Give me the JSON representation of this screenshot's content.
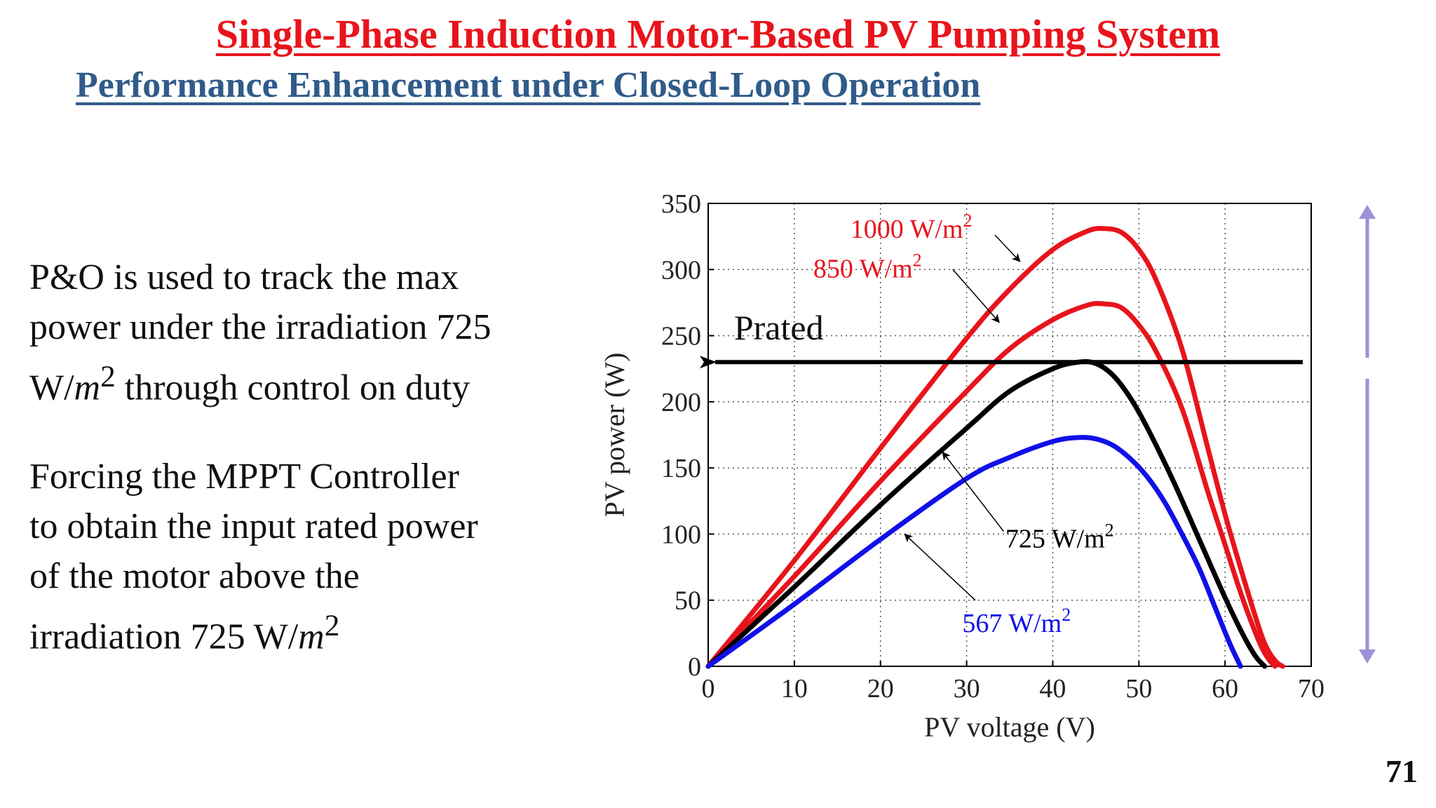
{
  "slide": {
    "title": "Single-Phase Induction Motor-Based PV Pumping System",
    "subtitle": "Performance Enhancement under Closed-Loop Operation",
    "paragraph1": {
      "line1": "P&O is used to track the max",
      "line2": "power under the irradiation 725",
      "line3_pre": "W/",
      "math": "m",
      "sup": "2",
      "line3_post": " through control on duty"
    },
    "paragraph2": {
      "line1": "Forcing the MPPT Controller",
      "line2": "to obtain the input rated power",
      "line3": "of the motor above the",
      "line4_pre": "irradiation 725 W/",
      "math": "m",
      "sup": "2"
    },
    "page_number": "71"
  },
  "colors": {
    "title": "#e8141c",
    "subtitle": "#305b8a",
    "ruler": "#9b93d6"
  },
  "chart_data": {
    "type": "line",
    "xlabel": "PV voltage (V)",
    "ylabel": "PV power (W)",
    "xlim": [
      0,
      70
    ],
    "ylim": [
      0,
      350
    ],
    "xticks": [
      0,
      10,
      20,
      30,
      40,
      50,
      60,
      70
    ],
    "yticks": [
      0,
      50,
      100,
      150,
      200,
      250,
      300,
      350
    ],
    "grid": "dotted",
    "series": [
      {
        "name": "1000 W/m2",
        "color": "#e8141c",
        "x": [
          0,
          10,
          20,
          30,
          35,
          40,
          44,
          46,
          48,
          50,
          52,
          55,
          58,
          60,
          62,
          64,
          65,
          66,
          66.7
        ],
        "y": [
          0,
          80,
          165,
          248,
          285,
          315,
          329,
          331,
          328,
          315,
          292,
          240,
          165,
          115,
          70,
          28,
          12,
          3,
          0
        ]
      },
      {
        "name": "850 W/m2",
        "color": "#e8141c",
        "x": [
          0,
          10,
          20,
          30,
          35,
          40,
          44,
          46,
          48,
          50,
          52,
          55,
          58,
          60,
          62,
          64,
          65,
          65.8
        ],
        "y": [
          0,
          68,
          140,
          208,
          240,
          262,
          273,
          274,
          271,
          258,
          238,
          195,
          132,
          92,
          52,
          18,
          6,
          0
        ]
      },
      {
        "name": "725 W/m2",
        "color": "#000000",
        "x": [
          0,
          10,
          20,
          30,
          35,
          40,
          43,
          45,
          47,
          49,
          51,
          54,
          57,
          60,
          62,
          63.5,
          64.6
        ],
        "y": [
          0,
          60,
          122,
          180,
          208,
          225,
          230,
          229,
          220,
          203,
          180,
          140,
          96,
          52,
          25,
          8,
          0
        ]
      },
      {
        "name": "567 W/m2",
        "color": "#1010e8",
        "x": [
          0,
          10,
          20,
          30,
          35,
          40,
          43,
          45,
          47,
          49,
          51,
          53,
          55,
          57,
          59,
          60.5,
          61.8
        ],
        "y": [
          0,
          47,
          96,
          142,
          158,
          170,
          173,
          172,
          167,
          157,
          143,
          124,
          100,
          74,
          42,
          18,
          0
        ]
      }
    ],
    "labels": [
      {
        "text": "1000 W/m",
        "sup": "2",
        "color": "#e8141c"
      },
      {
        "text": "850 W/m",
        "sup": "2",
        "color": "#e8141c"
      },
      {
        "text": "725 W/m",
        "sup": "2",
        "color": "#000000"
      },
      {
        "text": "567 W/m",
        "sup": "2",
        "color": "#1010e8"
      }
    ],
    "rated_line": {
      "label": "Prated",
      "value": 230
    }
  }
}
